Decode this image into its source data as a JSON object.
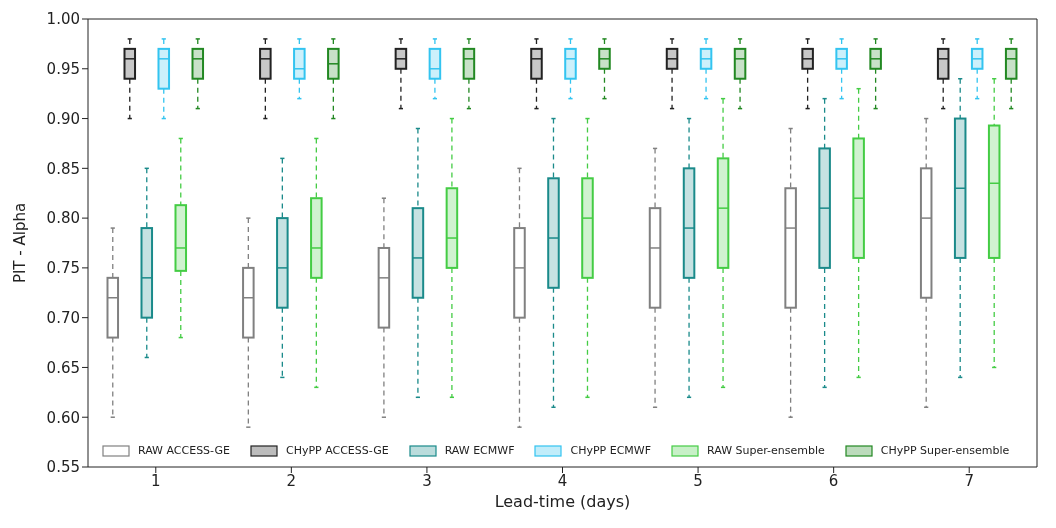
{
  "chart_data": {
    "type": "box",
    "xlabel": "Lead-time (days)",
    "ylabel": "PIT - Alpha",
    "categories": [
      "1",
      "2",
      "3",
      "4",
      "5",
      "6",
      "7"
    ],
    "ylim": [
      0.55,
      1.0
    ],
    "yticks": [
      {
        "value": 0.55,
        "label": "0.55"
      },
      {
        "value": 0.6,
        "label": "0.60"
      },
      {
        "value": 0.65,
        "label": "0.65"
      },
      {
        "value": 0.7,
        "label": "0.70"
      },
      {
        "value": 0.75,
        "label": "0.75"
      },
      {
        "value": 0.8,
        "label": "0.80"
      },
      {
        "value": 0.85,
        "label": "0.85"
      },
      {
        "value": 0.9,
        "label": "0.90"
      },
      {
        "value": 0.95,
        "label": "0.95"
      },
      {
        "value": 1.0,
        "label": "1.00"
      }
    ],
    "legend": "bottom",
    "series": [
      {
        "name": "RAW ACCESS-GE",
        "color": "#808080",
        "boxes": [
          {
            "low": 0.6,
            "q1": 0.68,
            "median": 0.72,
            "q3": 0.74,
            "high": 0.79
          },
          {
            "low": 0.59,
            "q1": 0.68,
            "median": 0.72,
            "q3": 0.75,
            "high": 0.8
          },
          {
            "low": 0.6,
            "q1": 0.69,
            "median": 0.74,
            "q3": 0.77,
            "high": 0.82
          },
          {
            "low": 0.59,
            "q1": 0.7,
            "median": 0.75,
            "q3": 0.79,
            "high": 0.85
          },
          {
            "low": 0.61,
            "q1": 0.71,
            "median": 0.77,
            "q3": 0.81,
            "high": 0.87
          },
          {
            "low": 0.6,
            "q1": 0.71,
            "median": 0.79,
            "q3": 0.83,
            "high": 0.89
          },
          {
            "low": 0.61,
            "q1": 0.72,
            "median": 0.8,
            "q3": 0.85,
            "high": 0.9
          }
        ]
      },
      {
        "name": "CHyPP ACCESS-GE",
        "color": "#222222",
        "boxes": [
          {
            "low": 0.9,
            "q1": 0.94,
            "median": 0.96,
            "q3": 0.97,
            "high": 0.98
          },
          {
            "low": 0.9,
            "q1": 0.94,
            "median": 0.96,
            "q3": 0.97,
            "high": 0.98
          },
          {
            "low": 0.91,
            "q1": 0.95,
            "median": 0.96,
            "q3": 0.97,
            "high": 0.98
          },
          {
            "low": 0.91,
            "q1": 0.94,
            "median": 0.96,
            "q3": 0.97,
            "high": 0.98
          },
          {
            "low": 0.91,
            "q1": 0.95,
            "median": 0.96,
            "q3": 0.97,
            "high": 0.98
          },
          {
            "low": 0.91,
            "q1": 0.95,
            "median": 0.96,
            "q3": 0.97,
            "high": 0.98
          },
          {
            "low": 0.91,
            "q1": 0.94,
            "median": 0.96,
            "q3": 0.97,
            "high": 0.98
          }
        ]
      },
      {
        "name": "RAW ECMWF",
        "color": "#1a8a8a",
        "boxes": [
          {
            "low": 0.66,
            "q1": 0.7,
            "median": 0.74,
            "q3": 0.79,
            "high": 0.85
          },
          {
            "low": 0.64,
            "q1": 0.71,
            "median": 0.75,
            "q3": 0.8,
            "high": 0.86
          },
          {
            "low": 0.62,
            "q1": 0.72,
            "median": 0.76,
            "q3": 0.81,
            "high": 0.89
          },
          {
            "low": 0.61,
            "q1": 0.73,
            "median": 0.78,
            "q3": 0.84,
            "high": 0.9
          },
          {
            "low": 0.62,
            "q1": 0.74,
            "median": 0.79,
            "q3": 0.85,
            "high": 0.9
          },
          {
            "low": 0.63,
            "q1": 0.75,
            "median": 0.81,
            "q3": 0.87,
            "high": 0.92
          },
          {
            "low": 0.64,
            "q1": 0.76,
            "median": 0.83,
            "q3": 0.9,
            "high": 0.94
          }
        ]
      },
      {
        "name": "CHyPP ECMWF",
        "color": "#33c4f0",
        "boxes": [
          {
            "low": 0.9,
            "q1": 0.93,
            "median": 0.96,
            "q3": 0.97,
            "high": 0.98
          },
          {
            "low": 0.92,
            "q1": 0.94,
            "median": 0.95,
            "q3": 0.97,
            "high": 0.98
          },
          {
            "low": 0.92,
            "q1": 0.94,
            "median": 0.95,
            "q3": 0.97,
            "high": 0.98
          },
          {
            "low": 0.92,
            "q1": 0.94,
            "median": 0.96,
            "q3": 0.97,
            "high": 0.98
          },
          {
            "low": 0.92,
            "q1": 0.95,
            "median": 0.96,
            "q3": 0.97,
            "high": 0.98
          },
          {
            "low": 0.92,
            "q1": 0.95,
            "median": 0.96,
            "q3": 0.97,
            "high": 0.98
          },
          {
            "low": 0.92,
            "q1": 0.95,
            "median": 0.96,
            "q3": 0.97,
            "high": 0.98
          }
        ]
      },
      {
        "name": "RAW Super-ensemble",
        "color": "#44cc44",
        "boxes": [
          {
            "low": 0.68,
            "q1": 0.747,
            "median": 0.77,
            "q3": 0.813,
            "high": 0.88
          },
          {
            "low": 0.63,
            "q1": 0.74,
            "median": 0.77,
            "q3": 0.82,
            "high": 0.88
          },
          {
            "low": 0.62,
            "q1": 0.75,
            "median": 0.78,
            "q3": 0.83,
            "high": 0.9
          },
          {
            "low": 0.62,
            "q1": 0.74,
            "median": 0.8,
            "q3": 0.84,
            "high": 0.9
          },
          {
            "low": 0.63,
            "q1": 0.75,
            "median": 0.81,
            "q3": 0.86,
            "high": 0.92
          },
          {
            "low": 0.64,
            "q1": 0.76,
            "median": 0.82,
            "q3": 0.88,
            "high": 0.93
          },
          {
            "low": 0.65,
            "q1": 0.76,
            "median": 0.835,
            "q3": 0.893,
            "high": 0.94
          }
        ]
      },
      {
        "name": "CHyPP Super-ensemble",
        "color": "#228822",
        "boxes": [
          {
            "low": 0.91,
            "q1": 0.94,
            "median": 0.96,
            "q3": 0.97,
            "high": 0.98
          },
          {
            "low": 0.9,
            "q1": 0.94,
            "median": 0.955,
            "q3": 0.97,
            "high": 0.98
          },
          {
            "low": 0.91,
            "q1": 0.94,
            "median": 0.96,
            "q3": 0.97,
            "high": 0.98
          },
          {
            "low": 0.92,
            "q1": 0.95,
            "median": 0.96,
            "q3": 0.97,
            "high": 0.98
          },
          {
            "low": 0.91,
            "q1": 0.94,
            "median": 0.96,
            "q3": 0.97,
            "high": 0.98
          },
          {
            "low": 0.91,
            "q1": 0.95,
            "median": 0.96,
            "q3": 0.97,
            "high": 0.98
          },
          {
            "low": 0.91,
            "q1": 0.94,
            "median": 0.96,
            "q3": 0.97,
            "high": 0.98
          }
        ]
      }
    ]
  }
}
